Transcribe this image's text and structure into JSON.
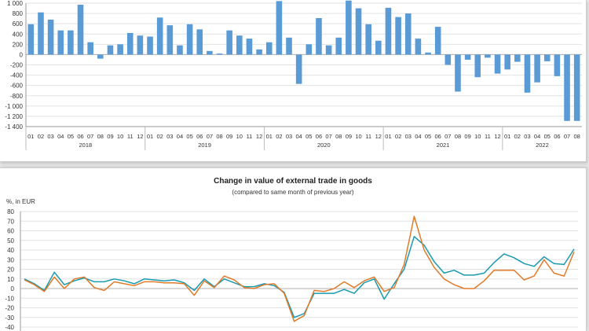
{
  "chart_data": [
    {
      "type": "bar",
      "title": "",
      "xlabel": "",
      "ylabel": "",
      "ylim": [
        -1400,
        1000
      ],
      "yticks": [
        "1 000",
        "800",
        "600",
        "400",
        "200",
        "0",
        "-200",
        "-400",
        "-600",
        "-800",
        "-1 000",
        "-1 200",
        "-1 400"
      ],
      "ytick_values": [
        1000,
        800,
        600,
        400,
        200,
        0,
        -200,
        -400,
        -600,
        -800,
        -1000,
        -1200,
        -1400
      ],
      "grid": true,
      "bar_color": "#5b9bd5",
      "years": [
        "2018",
        "2019",
        "2020",
        "2021",
        "2022"
      ],
      "categories": [
        "01",
        "02",
        "03",
        "04",
        "05",
        "06",
        "07",
        "08",
        "09",
        "10",
        "11",
        "12",
        "01",
        "02",
        "03",
        "04",
        "05",
        "06",
        "07",
        "08",
        "09",
        "10",
        "11",
        "12",
        "01",
        "02",
        "03",
        "04",
        "05",
        "06",
        "07",
        "08",
        "09",
        "10",
        "11",
        "12",
        "01",
        "02",
        "03",
        "04",
        "05",
        "06",
        "07",
        "08",
        "09",
        "10",
        "11",
        "12",
        "01",
        "02",
        "03",
        "04",
        "05",
        "06",
        "07",
        "08"
      ],
      "values": [
        590,
        820,
        680,
        470,
        470,
        970,
        240,
        -80,
        180,
        200,
        420,
        370,
        350,
        720,
        570,
        180,
        590,
        490,
        70,
        20,
        470,
        370,
        310,
        100,
        240,
        1040,
        330,
        -570,
        200,
        710,
        180,
        330,
        1050,
        900,
        590,
        270,
        910,
        730,
        800,
        310,
        40,
        540,
        -200,
        -720,
        -100,
        -440,
        -60,
        -370,
        -290,
        -140,
        -740,
        -540,
        -130,
        -420,
        -1290,
        -1290
      ]
    },
    {
      "type": "line",
      "title": "Change in value of external trade in goods",
      "subtitle": "(compared to same month of previous year)",
      "xlabel": "",
      "ylabel": "%, in EUR",
      "ylim": [
        -40,
        80
      ],
      "yticks": [
        "80",
        "70",
        "60",
        "50",
        "40",
        "30",
        "20",
        "10",
        "0",
        "-10",
        "-20",
        "-30",
        "-40"
      ],
      "ytick_values": [
        80,
        70,
        60,
        50,
        40,
        30,
        20,
        10,
        0,
        -10,
        -20,
        -30,
        -40
      ],
      "grid": true,
      "series": [
        {
          "color": "#1a9ab0",
          "values": [
            10,
            5,
            -2,
            17,
            4,
            8,
            11,
            7,
            7,
            10,
            8,
            5,
            10,
            9,
            8,
            9,
            6,
            -2,
            10,
            2,
            10,
            6,
            2,
            2,
            5,
            3,
            -4,
            -30,
            -26,
            -5,
            -5,
            -5,
            -1,
            -5,
            6,
            10,
            -11,
            5,
            20,
            54,
            45,
            28,
            16,
            19,
            14,
            14,
            16,
            27,
            36,
            32,
            26,
            23,
            33,
            26,
            25,
            41
          ]
        },
        {
          "color": "#e07b2a",
          "values": [
            9,
            4,
            -3,
            12,
            0,
            10,
            12,
            1,
            -2,
            7,
            5,
            3,
            7,
            7,
            6,
            6,
            5,
            -7,
            8,
            1,
            13,
            9,
            1,
            0,
            4,
            5,
            -5,
            -34,
            -28,
            -2,
            -3,
            0,
            7,
            1,
            8,
            12,
            -3,
            1,
            25,
            75,
            40,
            22,
            10,
            4,
            0,
            0,
            8,
            19,
            19,
            19,
            9,
            13,
            30,
            16,
            13,
            38
          ]
        }
      ]
    }
  ]
}
